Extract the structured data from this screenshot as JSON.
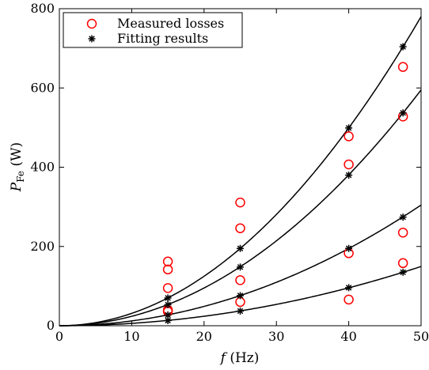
{
  "chart_data": {
    "type": "scatter",
    "title": "",
    "xlabel": {
      "italic": "f",
      "rest": " (Hz)"
    },
    "ylabel": {
      "main": "P",
      "sub": "Fe",
      "rest": " (W)"
    },
    "xlim": [
      0,
      50
    ],
    "ylim": [
      0,
      800
    ],
    "xticks": [
      0,
      10,
      20,
      30,
      40,
      50
    ],
    "yticks": [
      0,
      200,
      400,
      600,
      800
    ],
    "grid": false,
    "legend_position": "top-left",
    "series": [
      {
        "name": "Measured losses",
        "marker": "circle",
        "color": "#ff0000",
        "points": [
          [
            15,
            162
          ],
          [
            15,
            142
          ],
          [
            15,
            95
          ],
          [
            15,
            40
          ],
          [
            15,
            36
          ],
          [
            25,
            311
          ],
          [
            25,
            246
          ],
          [
            25,
            115
          ],
          [
            25,
            60
          ],
          [
            40,
            478
          ],
          [
            40,
            407
          ],
          [
            40,
            183
          ],
          [
            40,
            66
          ],
          [
            47.5,
            653
          ],
          [
            47.5,
            528
          ],
          [
            47.5,
            235
          ],
          [
            47.5,
            158
          ]
        ]
      },
      {
        "name": "Fitting results",
        "marker": "asterisk",
        "color": "#000000",
        "points": [
          [
            15,
            70
          ],
          [
            15,
            53
          ],
          [
            15,
            27
          ],
          [
            15,
            13
          ],
          [
            25,
            195
          ],
          [
            25,
            148
          ],
          [
            25,
            76
          ],
          [
            25,
            37
          ],
          [
            40,
            499
          ],
          [
            40,
            380
          ],
          [
            40,
            195
          ],
          [
            40,
            96
          ],
          [
            47.5,
            704
          ],
          [
            47.5,
            537
          ],
          [
            47.5,
            274
          ],
          [
            47.5,
            135
          ]
        ]
      }
    ],
    "fit_curves": [
      {
        "color": "#000000",
        "exponent": 2,
        "coefficient": 0.312
      },
      {
        "color": "#000000",
        "exponent": 2,
        "coefficient": 0.238
      },
      {
        "color": "#000000",
        "exponent": 2,
        "coefficient": 0.1218
      },
      {
        "color": "#000000",
        "exponent": 2,
        "coefficient": 0.0598
      }
    ]
  }
}
